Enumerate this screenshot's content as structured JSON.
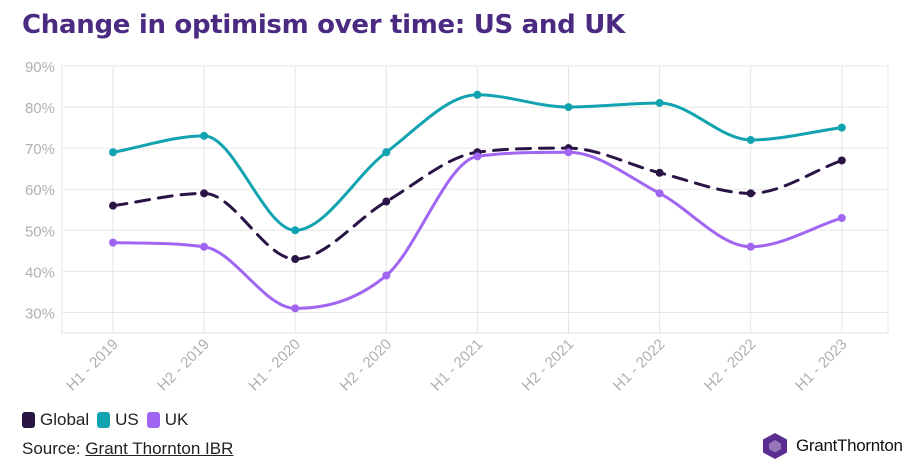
{
  "title": "Change in optimism over time: US and UK",
  "legend": {
    "global": "Global",
    "us": "US",
    "uk": "UK"
  },
  "source": {
    "prefix": "Source: ",
    "link_text": "Grant Thornton IBR"
  },
  "brand": "GrantThornton",
  "colors": {
    "title": "#4b2a82",
    "global": "#2a1445",
    "us": "#12a3b0",
    "uk": "#a066f2",
    "grid": "#e6e6e6",
    "tick": "#b0b0b0",
    "logo": "#5c2d91"
  },
  "chart_data": {
    "type": "line",
    "categories": [
      "H1 - 2019",
      "H2 - 2019",
      "H1 - 2020",
      "H2 - 2020",
      "H1 - 2021",
      "H2 - 2021",
      "H1 - 2022",
      "H2 - 2022",
      "H1 - 2023"
    ],
    "ylim": [
      25,
      90
    ],
    "yticks": [
      30,
      40,
      50,
      60,
      70,
      80,
      90
    ],
    "ytick_format": "%",
    "grid": true,
    "legend_position": "bottom-left",
    "series": [
      {
        "key": "us",
        "name": "US",
        "style": "solid",
        "values": [
          69,
          73,
          50,
          69,
          83,
          80,
          81,
          72,
          75
        ]
      },
      {
        "key": "global",
        "name": "Global",
        "style": "dashed",
        "values": [
          56,
          59,
          43,
          57,
          69,
          70,
          64,
          59,
          67
        ]
      },
      {
        "key": "uk",
        "name": "UK",
        "style": "solid",
        "values": [
          47,
          46,
          31,
          39,
          68,
          69,
          59,
          46,
          53
        ]
      }
    ]
  }
}
